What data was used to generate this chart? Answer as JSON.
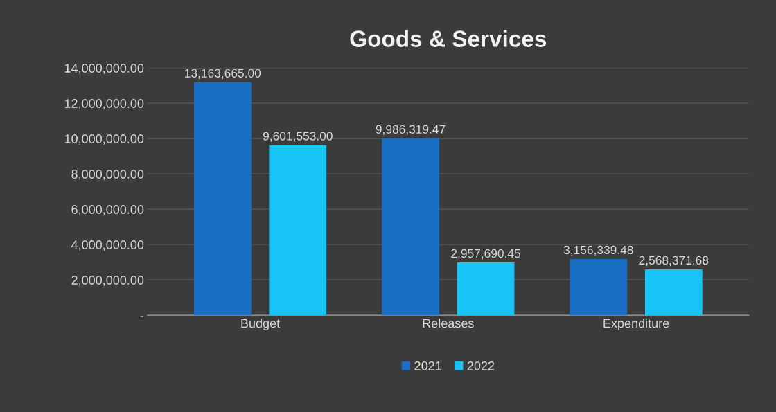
{
  "chart_data": {
    "type": "bar",
    "title": "Goods & Services",
    "categories": [
      "Budget",
      "Releases",
      "Expenditure"
    ],
    "series": [
      {
        "name": "2021",
        "color": "#1a6fc4",
        "values": [
          13163665.0,
          9986319.47,
          3156339.48
        ],
        "value_labels": [
          "13,163,665.00",
          "9,986,319.47",
          "3,156,339.48"
        ]
      },
      {
        "name": "2022",
        "color": "#17c4f5",
        "values": [
          9601553.0,
          2957690.45,
          2568371.68
        ],
        "value_labels": [
          "9,601,553.00",
          "2,957,690.45",
          "2,568,371.68"
        ]
      }
    ],
    "ylim": [
      0,
      14000000
    ],
    "yticks": [
      {
        "value": 0,
        "label": "-"
      },
      {
        "value": 2000000,
        "label": "2,000,000.00"
      },
      {
        "value": 4000000,
        "label": "4,000,000.00"
      },
      {
        "value": 6000000,
        "label": "6,000,000.00"
      },
      {
        "value": 8000000,
        "label": "8,000,000.00"
      },
      {
        "value": 10000000,
        "label": "10,000,000.00"
      },
      {
        "value": 12000000,
        "label": "12,000,000.00"
      },
      {
        "value": 14000000,
        "label": "14,000,000.00"
      }
    ],
    "grid": "y",
    "legend": "bottom"
  }
}
